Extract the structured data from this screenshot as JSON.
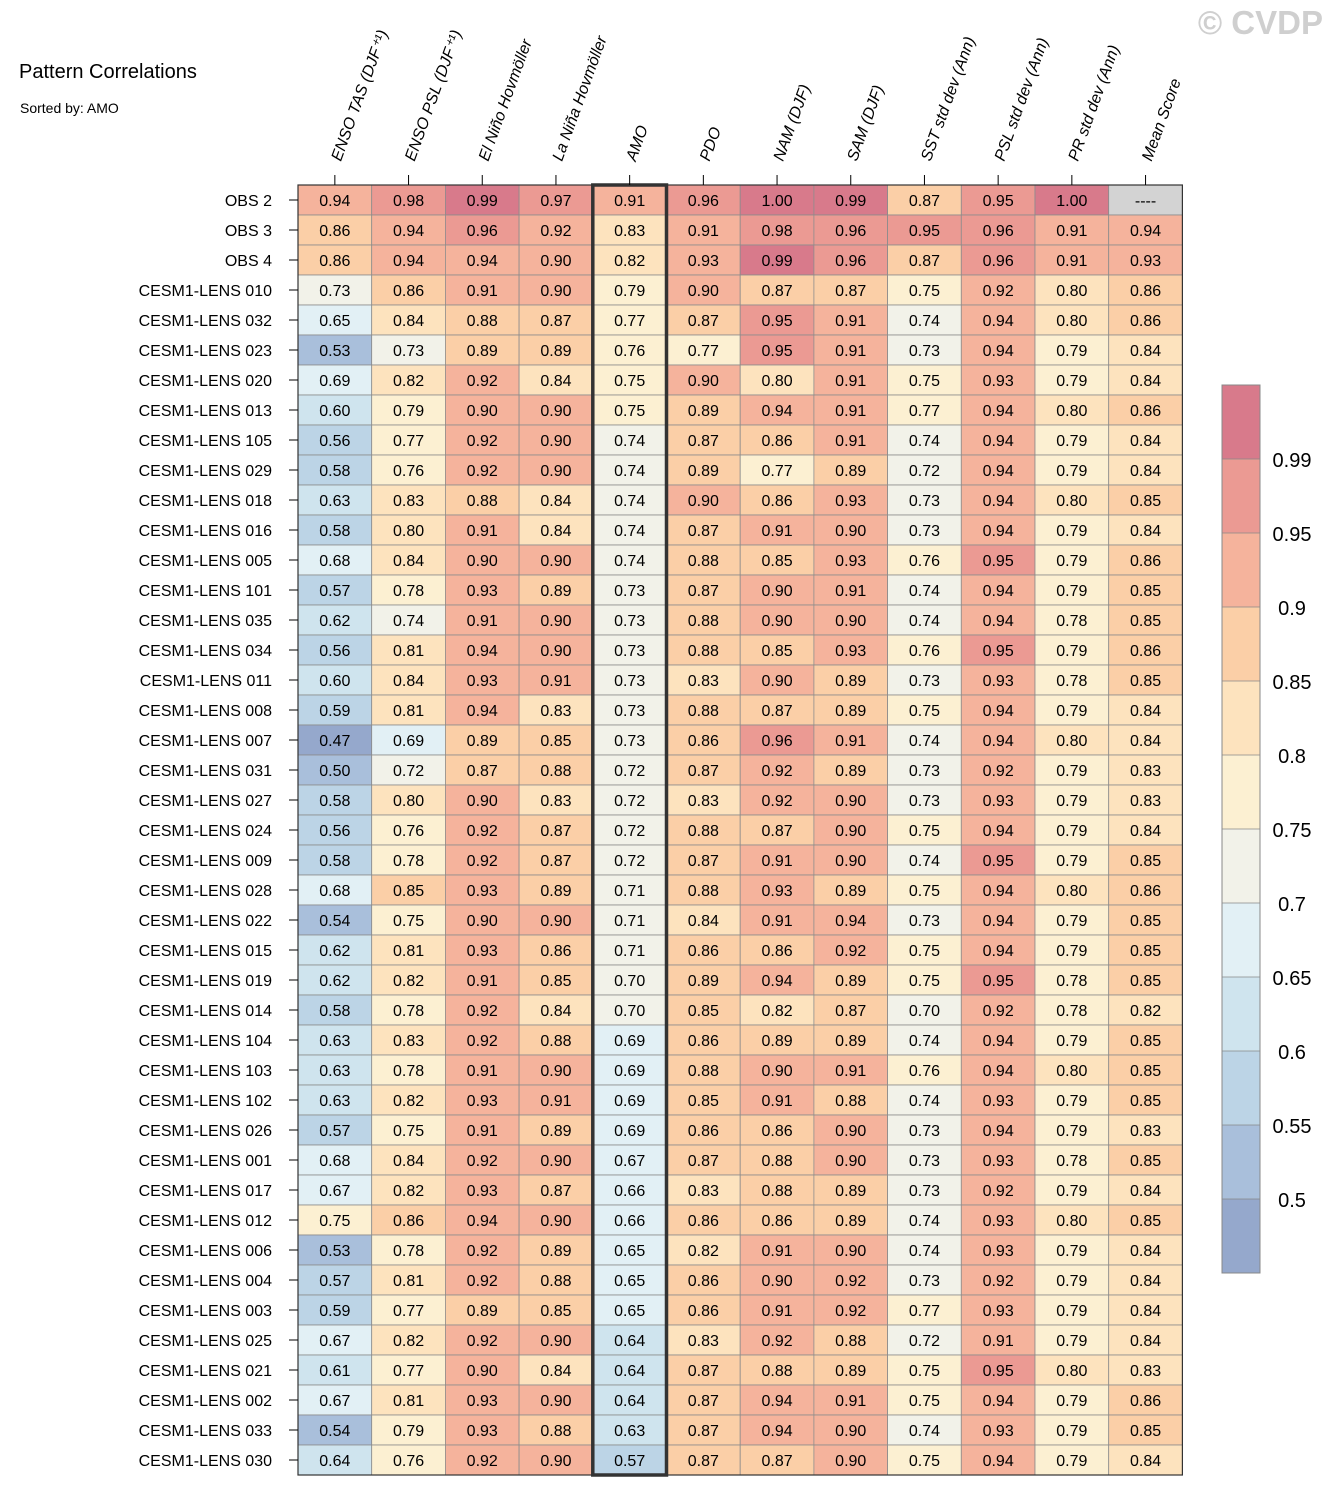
{
  "watermark": "© CVDP",
  "title": "Pattern Correlations",
  "subtitle": "Sorted by: AMO",
  "chart_data": {
    "type": "heatmap",
    "sorted_by": "AMO",
    "highlight_column": "AMO",
    "columns": [
      "ENSO TAS (DJF⁺¹)",
      "ENSO PSL (DJF⁺¹)",
      "El Niño Hovmöller",
      "La Niña Hovmöller",
      "AMO",
      "PDO",
      "NAM (DJF)",
      "SAM (DJF)",
      "SST std dev (Ann)",
      "PSL std dev (Ann)",
      "PR std dev (Ann)",
      "Mean Score"
    ],
    "rows": [
      "OBS 2",
      "OBS 3",
      "OBS 4",
      "CESM1-LENS 010",
      "CESM1-LENS 032",
      "CESM1-LENS 023",
      "CESM1-LENS 020",
      "CESM1-LENS 013",
      "CESM1-LENS 105",
      "CESM1-LENS 029",
      "CESM1-LENS 018",
      "CESM1-LENS 016",
      "CESM1-LENS 005",
      "CESM1-LENS 101",
      "CESM1-LENS 035",
      "CESM1-LENS 034",
      "CESM1-LENS 011",
      "CESM1-LENS 008",
      "CESM1-LENS 007",
      "CESM1-LENS 031",
      "CESM1-LENS 027",
      "CESM1-LENS 024",
      "CESM1-LENS 009",
      "CESM1-LENS 028",
      "CESM1-LENS 022",
      "CESM1-LENS 015",
      "CESM1-LENS 019",
      "CESM1-LENS 014",
      "CESM1-LENS 104",
      "CESM1-LENS 103",
      "CESM1-LENS 102",
      "CESM1-LENS 026",
      "CESM1-LENS 001",
      "CESM1-LENS 017",
      "CESM1-LENS 012",
      "CESM1-LENS 006",
      "CESM1-LENS 004",
      "CESM1-LENS 003",
      "CESM1-LENS 025",
      "CESM1-LENS 021",
      "CESM1-LENS 002",
      "CESM1-LENS 033",
      "CESM1-LENS 030"
    ],
    "values": [
      [
        "0.94",
        "0.98",
        "0.99",
        "0.97",
        "0.91",
        "0.96",
        "1.00",
        "0.99",
        "0.87",
        "0.95",
        "1.00",
        "----"
      ],
      [
        "0.86",
        "0.94",
        "0.96",
        "0.92",
        "0.83",
        "0.91",
        "0.98",
        "0.96",
        "0.95",
        "0.96",
        "0.91",
        "0.94"
      ],
      [
        "0.86",
        "0.94",
        "0.94",
        "0.90",
        "0.82",
        "0.93",
        "0.99",
        "0.96",
        "0.87",
        "0.96",
        "0.91",
        "0.93"
      ],
      [
        "0.73",
        "0.86",
        "0.91",
        "0.90",
        "0.79",
        "0.90",
        "0.87",
        "0.87",
        "0.75",
        "0.92",
        "0.80",
        "0.86"
      ],
      [
        "0.65",
        "0.84",
        "0.88",
        "0.87",
        "0.77",
        "0.87",
        "0.95",
        "0.91",
        "0.74",
        "0.94",
        "0.80",
        "0.86"
      ],
      [
        "0.53",
        "0.73",
        "0.89",
        "0.89",
        "0.76",
        "0.77",
        "0.95",
        "0.91",
        "0.73",
        "0.94",
        "0.79",
        "0.84"
      ],
      [
        "0.69",
        "0.82",
        "0.92",
        "0.84",
        "0.75",
        "0.90",
        "0.80",
        "0.91",
        "0.75",
        "0.93",
        "0.79",
        "0.84"
      ],
      [
        "0.60",
        "0.79",
        "0.90",
        "0.90",
        "0.75",
        "0.89",
        "0.94",
        "0.91",
        "0.77",
        "0.94",
        "0.80",
        "0.86"
      ],
      [
        "0.56",
        "0.77",
        "0.92",
        "0.90",
        "0.74",
        "0.87",
        "0.86",
        "0.91",
        "0.74",
        "0.94",
        "0.79",
        "0.84"
      ],
      [
        "0.58",
        "0.76",
        "0.92",
        "0.90",
        "0.74",
        "0.89",
        "0.77",
        "0.89",
        "0.72",
        "0.94",
        "0.79",
        "0.84"
      ],
      [
        "0.63",
        "0.83",
        "0.88",
        "0.84",
        "0.74",
        "0.90",
        "0.86",
        "0.93",
        "0.73",
        "0.94",
        "0.80",
        "0.85"
      ],
      [
        "0.58",
        "0.80",
        "0.91",
        "0.84",
        "0.74",
        "0.87",
        "0.91",
        "0.90",
        "0.73",
        "0.94",
        "0.79",
        "0.84"
      ],
      [
        "0.68",
        "0.84",
        "0.90",
        "0.90",
        "0.74",
        "0.88",
        "0.85",
        "0.93",
        "0.76",
        "0.95",
        "0.79",
        "0.86"
      ],
      [
        "0.57",
        "0.78",
        "0.93",
        "0.89",
        "0.73",
        "0.87",
        "0.90",
        "0.91",
        "0.74",
        "0.94",
        "0.79",
        "0.85"
      ],
      [
        "0.62",
        "0.74",
        "0.91",
        "0.90",
        "0.73",
        "0.88",
        "0.90",
        "0.90",
        "0.74",
        "0.94",
        "0.78",
        "0.85"
      ],
      [
        "0.56",
        "0.81",
        "0.94",
        "0.90",
        "0.73",
        "0.88",
        "0.85",
        "0.93",
        "0.76",
        "0.95",
        "0.79",
        "0.86"
      ],
      [
        "0.60",
        "0.84",
        "0.93",
        "0.91",
        "0.73",
        "0.83",
        "0.90",
        "0.89",
        "0.73",
        "0.93",
        "0.78",
        "0.85"
      ],
      [
        "0.59",
        "0.81",
        "0.94",
        "0.83",
        "0.73",
        "0.88",
        "0.87",
        "0.89",
        "0.75",
        "0.94",
        "0.79",
        "0.84"
      ],
      [
        "0.47",
        "0.69",
        "0.89",
        "0.85",
        "0.73",
        "0.86",
        "0.96",
        "0.91",
        "0.74",
        "0.94",
        "0.80",
        "0.84"
      ],
      [
        "0.50",
        "0.72",
        "0.87",
        "0.88",
        "0.72",
        "0.87",
        "0.92",
        "0.89",
        "0.73",
        "0.92",
        "0.79",
        "0.83"
      ],
      [
        "0.58",
        "0.80",
        "0.90",
        "0.83",
        "0.72",
        "0.83",
        "0.92",
        "0.90",
        "0.73",
        "0.93",
        "0.79",
        "0.83"
      ],
      [
        "0.56",
        "0.76",
        "0.92",
        "0.87",
        "0.72",
        "0.88",
        "0.87",
        "0.90",
        "0.75",
        "0.94",
        "0.79",
        "0.84"
      ],
      [
        "0.58",
        "0.78",
        "0.92",
        "0.87",
        "0.72",
        "0.87",
        "0.91",
        "0.90",
        "0.74",
        "0.95",
        "0.79",
        "0.85"
      ],
      [
        "0.68",
        "0.85",
        "0.93",
        "0.89",
        "0.71",
        "0.88",
        "0.93",
        "0.89",
        "0.75",
        "0.94",
        "0.80",
        "0.86"
      ],
      [
        "0.54",
        "0.75",
        "0.90",
        "0.90",
        "0.71",
        "0.84",
        "0.91",
        "0.94",
        "0.73",
        "0.94",
        "0.79",
        "0.85"
      ],
      [
        "0.62",
        "0.81",
        "0.93",
        "0.86",
        "0.71",
        "0.86",
        "0.86",
        "0.92",
        "0.75",
        "0.94",
        "0.79",
        "0.85"
      ],
      [
        "0.62",
        "0.82",
        "0.91",
        "0.85",
        "0.70",
        "0.89",
        "0.94",
        "0.89",
        "0.75",
        "0.95",
        "0.78",
        "0.85"
      ],
      [
        "0.58",
        "0.78",
        "0.92",
        "0.84",
        "0.70",
        "0.85",
        "0.82",
        "0.87",
        "0.70",
        "0.92",
        "0.78",
        "0.82"
      ],
      [
        "0.63",
        "0.83",
        "0.92",
        "0.88",
        "0.69",
        "0.86",
        "0.89",
        "0.89",
        "0.74",
        "0.94",
        "0.79",
        "0.85"
      ],
      [
        "0.63",
        "0.78",
        "0.91",
        "0.90",
        "0.69",
        "0.88",
        "0.90",
        "0.91",
        "0.76",
        "0.94",
        "0.80",
        "0.85"
      ],
      [
        "0.63",
        "0.82",
        "0.93",
        "0.91",
        "0.69",
        "0.85",
        "0.91",
        "0.88",
        "0.74",
        "0.93",
        "0.79",
        "0.85"
      ],
      [
        "0.57",
        "0.75",
        "0.91",
        "0.89",
        "0.69",
        "0.86",
        "0.86",
        "0.90",
        "0.73",
        "0.94",
        "0.79",
        "0.83"
      ],
      [
        "0.68",
        "0.84",
        "0.92",
        "0.90",
        "0.67",
        "0.87",
        "0.88",
        "0.90",
        "0.73",
        "0.93",
        "0.78",
        "0.85"
      ],
      [
        "0.67",
        "0.82",
        "0.93",
        "0.87",
        "0.66",
        "0.83",
        "0.88",
        "0.89",
        "0.73",
        "0.92",
        "0.79",
        "0.84"
      ],
      [
        "0.75",
        "0.86",
        "0.94",
        "0.90",
        "0.66",
        "0.86",
        "0.86",
        "0.89",
        "0.74",
        "0.93",
        "0.80",
        "0.85"
      ],
      [
        "0.53",
        "0.78",
        "0.92",
        "0.89",
        "0.65",
        "0.82",
        "0.91",
        "0.90",
        "0.74",
        "0.93",
        "0.79",
        "0.84"
      ],
      [
        "0.57",
        "0.81",
        "0.92",
        "0.88",
        "0.65",
        "0.86",
        "0.90",
        "0.92",
        "0.73",
        "0.92",
        "0.79",
        "0.84"
      ],
      [
        "0.59",
        "0.77",
        "0.89",
        "0.85",
        "0.65",
        "0.86",
        "0.91",
        "0.92",
        "0.77",
        "0.93",
        "0.79",
        "0.84"
      ],
      [
        "0.67",
        "0.82",
        "0.92",
        "0.90",
        "0.64",
        "0.83",
        "0.92",
        "0.88",
        "0.72",
        "0.91",
        "0.79",
        "0.84"
      ],
      [
        "0.61",
        "0.77",
        "0.90",
        "0.84",
        "0.64",
        "0.87",
        "0.88",
        "0.89",
        "0.75",
        "0.95",
        "0.80",
        "0.83"
      ],
      [
        "0.67",
        "0.81",
        "0.93",
        "0.90",
        "0.64",
        "0.87",
        "0.94",
        "0.91",
        "0.75",
        "0.94",
        "0.79",
        "0.86"
      ],
      [
        "0.54",
        "0.79",
        "0.93",
        "0.88",
        "0.63",
        "0.87",
        "0.94",
        "0.90",
        "0.74",
        "0.93",
        "0.79",
        "0.85"
      ],
      [
        "0.64",
        "0.76",
        "0.92",
        "0.90",
        "0.57",
        "0.87",
        "0.87",
        "0.90",
        "0.75",
        "0.94",
        "0.79",
        "0.84"
      ]
    ],
    "missing_color": "#d3d3d3",
    "colorbar": {
      "labels": [
        "0.5",
        "0.55",
        "0.6",
        "0.65",
        "0.7",
        "0.75",
        "0.8",
        "0.85",
        "0.9",
        "0.95",
        "0.99"
      ],
      "bounds": [
        0.5,
        0.55,
        0.6,
        0.65,
        0.7,
        0.75,
        0.8,
        0.85,
        0.9,
        0.95,
        0.99
      ],
      "colors": [
        "#95a8cc",
        "#a9bfdb",
        "#bcd4e6",
        "#cfe4ee",
        "#e2f0f5",
        "#f2f2e9",
        "#fcf0d2",
        "#fde3be",
        "#fbcfa7",
        "#f5b39c",
        "#eb9a93",
        "#d87a8b"
      ]
    }
  }
}
